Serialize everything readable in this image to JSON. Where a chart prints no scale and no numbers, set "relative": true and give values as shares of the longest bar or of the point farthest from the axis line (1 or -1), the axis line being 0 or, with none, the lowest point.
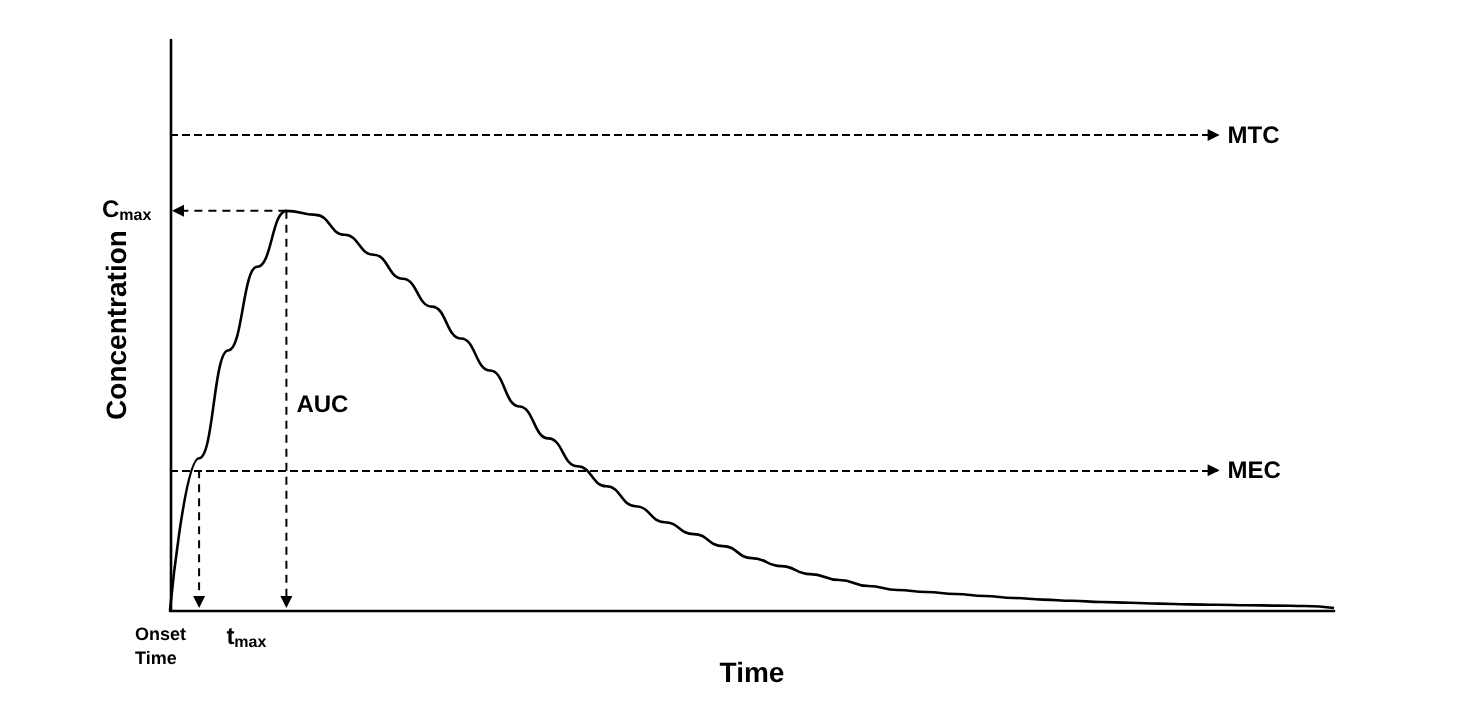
{
  "chart_data": {
    "type": "line",
    "relative": true,
    "xlabel": "Time",
    "ylabel": "Concentration",
    "categories": [
      null,
      null,
      null,
      null,
      null,
      null,
      null,
      null,
      null,
      null,
      null,
      null,
      null,
      null,
      null,
      null,
      null,
      null,
      null,
      null,
      null,
      null,
      null,
      null,
      null,
      null,
      null,
      null,
      null,
      null,
      null,
      null,
      null,
      null,
      null,
      null,
      null,
      null,
      null,
      null,
      null
    ],
    "series": [
      {
        "color": "#000000",
        "values": [
          0,
          0.38,
          0.65,
          0.86,
          1,
          0.99,
          0.94,
          0.89,
          0.83,
          0.76,
          0.68,
          0.6,
          0.51,
          0.43,
          0.36,
          0.31,
          0.26,
          0.22,
          0.19,
          0.16,
          0.13,
          0.11,
          0.09,
          0.075,
          0.06,
          0.05,
          0.045,
          0.04,
          0.035,
          0.03,
          0.026,
          0.023,
          0.02,
          0.018,
          0.016,
          0.014,
          0.013,
          0.012,
          0.011,
          0.01,
          0.005
        ]
      }
    ],
    "ref_lines": [
      {
        "axis": "y",
        "value": 1.19,
        "label": "MTC",
        "color": "#000000",
        "line_style": "dashed"
      },
      {
        "axis": "y",
        "value": 0.35,
        "label": "MEC",
        "color": "#000000",
        "line_style": "dashed"
      }
    ],
    "annotations": [
      "C$_{max}$",
      "t$_{max}$",
      "Onset\nTime",
      "AUC"
    ],
    "grid": false
  }
}
